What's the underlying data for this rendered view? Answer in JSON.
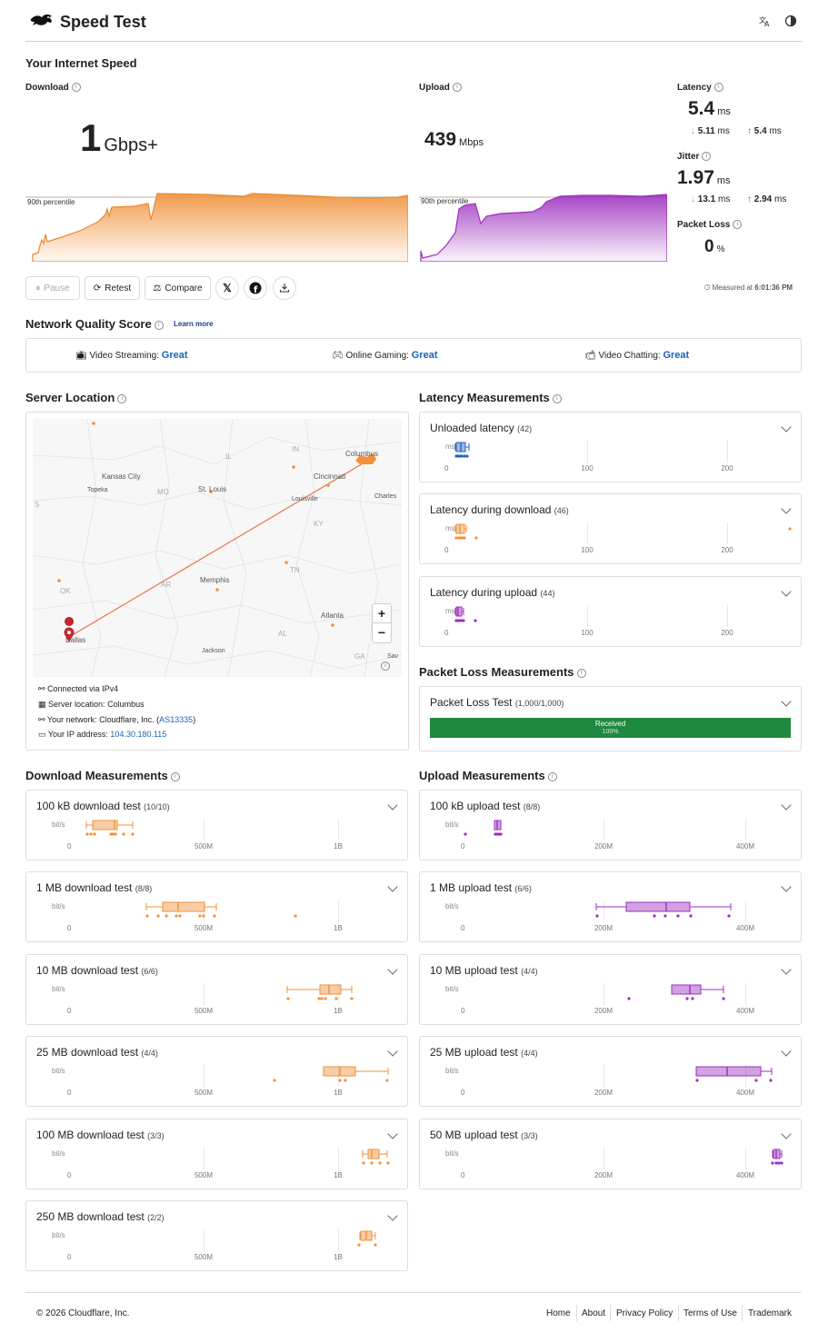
{
  "header": {
    "title": "Speed Test",
    "icons": [
      "rabbit-logo-icon",
      "translate-icon",
      "theme-contrast-icon"
    ]
  },
  "speed": {
    "heading": "Your Internet Speed",
    "download": {
      "label": "Download",
      "value": "1",
      "unit": "Gbps+",
      "percentile": "90th percentile"
    },
    "upload": {
      "label": "Upload",
      "value": "439",
      "unit": "Mbps",
      "percentile": "90th percentile"
    },
    "latency": {
      "label": "Latency",
      "value": "5.4",
      "unit": "ms",
      "down": "5.11",
      "down_unit": "ms",
      "up": "5.4",
      "up_unit": "ms"
    },
    "jitter": {
      "label": "Jitter",
      "value": "1.97",
      "unit": "ms",
      "down": "13.1",
      "down_unit": "ms",
      "up": "2.94",
      "up_unit": "ms"
    },
    "packet_loss": {
      "label": "Packet Loss",
      "value": "0",
      "unit": "%"
    }
  },
  "actions": {
    "pause": "Pause",
    "retest": "Retest",
    "compare": "Compare",
    "measured_prefix": "Measured at",
    "measured_time": "6:01:36 PM"
  },
  "nqs": {
    "heading": "Network Quality Score",
    "learn_more": "Learn more",
    "items": [
      {
        "label": "Video Streaming:",
        "value": "Great"
      },
      {
        "label": "Online Gaming:",
        "value": "Great"
      },
      {
        "label": "Video Chatting:",
        "value": "Great"
      }
    ]
  },
  "server": {
    "heading": "Server Location",
    "connected_label": "Connected via",
    "connected_value": "IPv4",
    "location_label": "Server location:",
    "location_value": "Columbus",
    "network_label": "Your network:",
    "network_value": "Cloudflare, Inc. (",
    "network_asn": "AS13335",
    "network_close": ")",
    "ip_label": "Your IP address:",
    "ip_value": "104.30.180.115",
    "map_cities": [
      "Columbus",
      "Kansas City",
      "Cincinnati",
      "Topeka",
      "St. Louis",
      "Louisville",
      "Charles",
      "Memphis",
      "Atlanta",
      "Dallas",
      "Jackson",
      "Sav"
    ],
    "map_states": [
      "IL",
      "IN",
      "MO",
      "KY",
      "TN",
      "AR",
      "OK",
      "AL",
      "GA",
      "S"
    ],
    "zoom_in": "+",
    "zoom_out": "−"
  },
  "latency_meas": {
    "heading": "Latency Measurements",
    "unit": "ms",
    "ticks": [
      "0",
      "100",
      "200"
    ],
    "items": [
      {
        "title": "Unloaded latency",
        "count": "(42)"
      },
      {
        "title": "Latency during download",
        "count": "(46)"
      },
      {
        "title": "Latency during upload",
        "count": "(44)"
      }
    ]
  },
  "packet_meas": {
    "heading": "Packet Loss Measurements",
    "title": "Packet Loss Test",
    "count": "(1,000/1,000)",
    "bar_label": "Received",
    "bar_pct": "100%",
    "received_fraction": 1.0
  },
  "download_meas": {
    "heading": "Download Measurements",
    "unit": "bit/s",
    "ticks": [
      "0",
      "500M",
      "1B"
    ],
    "items": [
      {
        "title": "100 kB download test",
        "count": "(10/10)"
      },
      {
        "title": "1 MB download test",
        "count": "(8/8)"
      },
      {
        "title": "10 MB download test",
        "count": "(6/6)"
      },
      {
        "title": "25 MB download test",
        "count": "(4/4)"
      },
      {
        "title": "100 MB download test",
        "count": "(3/3)"
      },
      {
        "title": "250 MB download test",
        "count": "(2/2)"
      }
    ]
  },
  "upload_meas": {
    "heading": "Upload Measurements",
    "unit": "bit/s",
    "ticks": [
      "0",
      "200M",
      "400M"
    ],
    "items": [
      {
        "title": "100 kB upload test",
        "count": "(8/8)"
      },
      {
        "title": "1 MB upload test",
        "count": "(6/6)"
      },
      {
        "title": "10 MB upload test",
        "count": "(4/4)"
      },
      {
        "title": "25 MB upload test",
        "count": "(4/4)"
      },
      {
        "title": "50 MB upload test",
        "count": "(3/3)"
      }
    ]
  },
  "footer": {
    "copyright": "© 2026 Cloudflare, Inc.",
    "links": [
      "Home",
      "About",
      "Privacy Policy",
      "Terms of Use",
      "Trademark"
    ]
  },
  "colors": {
    "download": "#f0913a",
    "upload": "#9c2fbf",
    "latency_unloaded": "#2563b8",
    "accent_link": "#1a62b8",
    "packet_bar": "#1f8a3f"
  }
}
